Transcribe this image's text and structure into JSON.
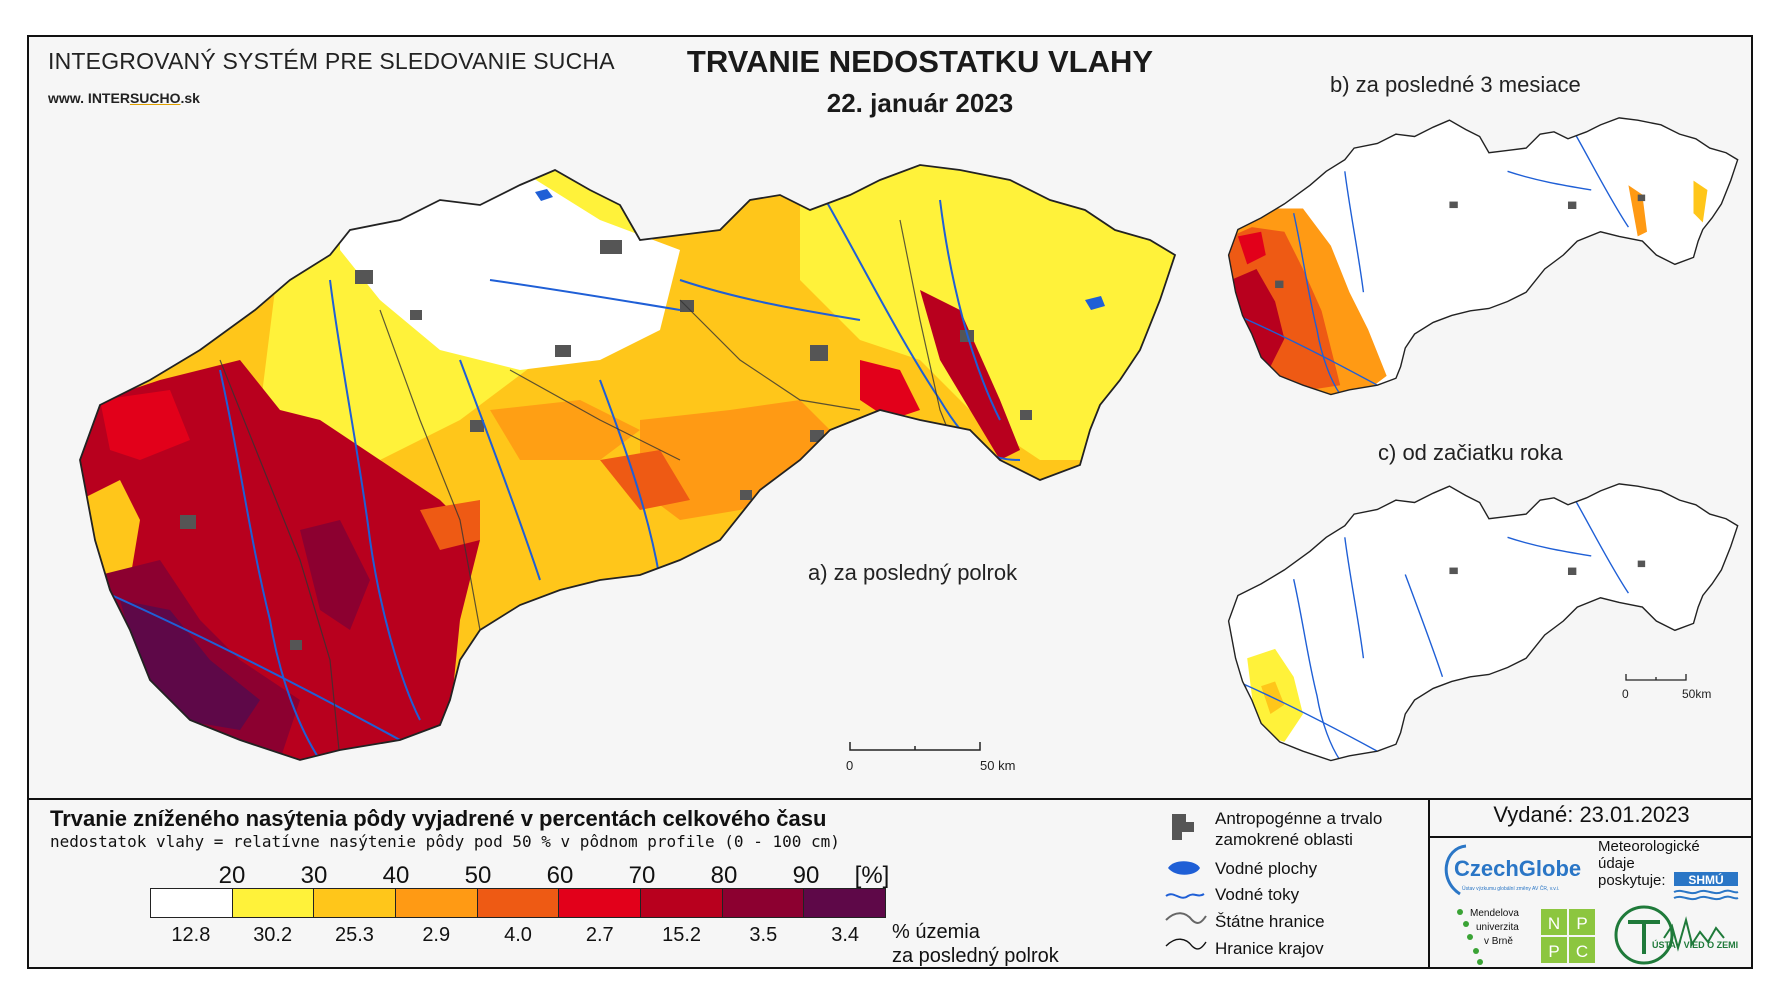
{
  "header": {
    "system_title": "INTEGROVANÝ SYSTÉM PRE SLEDOVANIE SUCHA",
    "url_prefix": "www. INTER",
    "url_mid": "SUCHO",
    "url_suffix": ".sk",
    "main_title": "TRVANIE NEDOSTATKU VLAHY",
    "date": "22. január 2023"
  },
  "panels": {
    "a": "a) za posledný polrok",
    "b": "b) za posledné 3 mesiace",
    "c": "c) od začiatku roka"
  },
  "scalebars": {
    "main": {
      "zero": "0",
      "end": "50 km"
    },
    "small": {
      "zero": "0",
      "end": "50km"
    }
  },
  "legend": {
    "title": "Trvanie zníženého nasýtenia pôdy vyjadrené v percentách celkového času",
    "subtitle": "nedostatok vlahy = relatívne nasýtenie pôdy pod 50 % v pôdnom profile (0 - 100 cm)",
    "ticks": [
      "20",
      "30",
      "40",
      "50",
      "60",
      "70",
      "80",
      "90",
      "[%]"
    ],
    "classes": [
      {
        "color": "#ffffff",
        "percent": "12.8"
      },
      {
        "color": "#fff23a",
        "percent": "30.2"
      },
      {
        "color": "#ffc61a",
        "percent": "25.3"
      },
      {
        "color": "#ff9a14",
        "percent": "2.9"
      },
      {
        "color": "#ee5a14",
        "percent": "4.0"
      },
      {
        "color": "#e2001a",
        "percent": "2.7"
      },
      {
        "color": "#b8001e",
        "percent": "15.2"
      },
      {
        "color": "#8c0030",
        "percent": "3.5"
      },
      {
        "color": "#5e0848",
        "percent": "3.4"
      }
    ],
    "percent_label_1": "% územia",
    "percent_label_2": "za posledný polrok"
  },
  "map_legend": {
    "anthropogenic_1": "Antropogénne a trvalo",
    "anthropogenic_2": "zamokrené oblasti",
    "water_bodies": "Vodné plochy",
    "streams": "Vodné toky",
    "state_border": "Štátne hranice",
    "region_border": "Hranice krajov"
  },
  "credits": {
    "issued": "Vydané: 23.01.2023",
    "czechglobe": "CzechGlobe",
    "czechglobe_sub": "Ústav výzkumu globální změny AV ČR, v.v.i.",
    "met_1": "Meteorologické",
    "met_2": "údaje",
    "met_3": "poskytuje:",
    "shmu": "SHMÚ",
    "mendel_1": "Mendelova",
    "mendel_2": "univerzita",
    "mendel_3": "v Brně",
    "nppc": [
      "N",
      "P",
      "P",
      "C"
    ],
    "uvz": "ÚSTAV VIED O ZEMI"
  },
  "colors": {
    "white": "#ffffff",
    "yellow": "#fff23a",
    "gold": "#ffc61a",
    "orange": "#ff9a14",
    "dark_orange": "#ee5a14",
    "red": "#e2001a",
    "crimson": "#b8001e",
    "maroon": "#8c0030",
    "purple": "#5e0848",
    "water": "#1f5fd6",
    "urban": "#555555"
  }
}
